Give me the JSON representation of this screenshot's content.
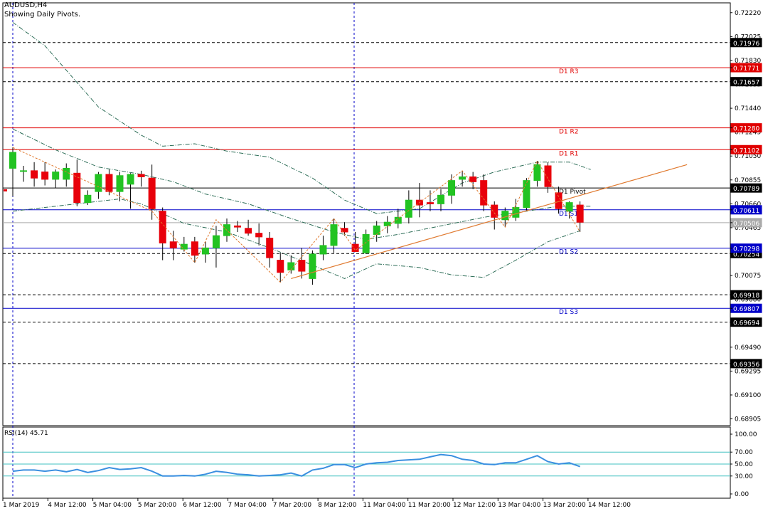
{
  "header": {
    "symbol": "AUDUSD,H4",
    "subtitle": "Showing Daily Pivots."
  },
  "colors": {
    "background": "#ffffff",
    "frame": "#000000",
    "bull": "#22c322",
    "bear": "#e8000b",
    "resistance": "#e00000",
    "support": "#0000c8",
    "pivot": "#000000",
    "trendline": "#e07a30",
    "zigzag": "#e07a30",
    "bands": "#2e6e58",
    "rsi": "#3a8fe0",
    "rsi_levels": "#40c0c0",
    "period_sep": "#0000c8",
    "tag_red": "#e00000",
    "tag_blue": "#0000c8",
    "tag_black": "#000000",
    "tag_gray": "#aaaaaa"
  },
  "chart_data": {
    "type": "candlestick",
    "ylim": [
      0.6885,
      0.723
    ],
    "price_ticks": [
      "0.72220",
      "0.72025",
      "0.71830",
      "0.71635",
      "0.71440",
      "0.71245",
      "0.71050",
      "0.70855",
      "0.70660",
      "0.70465",
      "0.70270",
      "0.70075",
      "0.69880",
      "0.69685",
      "0.69490",
      "0.69295",
      "0.69100",
      "0.68905"
    ],
    "x_labels": [
      "1 Mar 2019",
      "4 Mar 12:00",
      "5 Mar 04:00",
      "5 Mar 20:00",
      "6 Mar 12:00",
      "7 Mar 04:00",
      "7 Mar 20:00",
      "8 Mar 12:00",
      "11 Mar 04:00",
      "11 Mar 20:00",
      "12 Mar 12:00",
      "13 Mar 04:00",
      "13 Mar 20:00",
      "14 Mar 12:00"
    ],
    "candles": [
      {
        "o": 0.7095,
        "h": 0.7112,
        "l": 0.7072,
        "c": 0.7108
      },
      {
        "o": 0.7093,
        "h": 0.7097,
        "l": 0.7084,
        "c": 0.7093
      },
      {
        "o": 0.7093,
        "h": 0.71,
        "l": 0.708,
        "c": 0.7087
      },
      {
        "o": 0.7092,
        "h": 0.71,
        "l": 0.7081,
        "c": 0.7086
      },
      {
        "o": 0.7086,
        "h": 0.7094,
        "l": 0.7079,
        "c": 0.7092
      },
      {
        "o": 0.7086,
        "h": 0.7099,
        "l": 0.708,
        "c": 0.7095
      },
      {
        "o": 0.7091,
        "h": 0.7102,
        "l": 0.7064,
        "c": 0.7067
      },
      {
        "o": 0.7067,
        "h": 0.7077,
        "l": 0.7065,
        "c": 0.7073
      },
      {
        "o": 0.7076,
        "h": 0.7092,
        "l": 0.707,
        "c": 0.709
      },
      {
        "o": 0.709,
        "h": 0.7094,
        "l": 0.7073,
        "c": 0.7076
      },
      {
        "o": 0.7076,
        "h": 0.7092,
        "l": 0.7068,
        "c": 0.7089
      },
      {
        "o": 0.7082,
        "h": 0.7091,
        "l": 0.7062,
        "c": 0.709
      },
      {
        "o": 0.709,
        "h": 0.7093,
        "l": 0.708,
        "c": 0.7088
      },
      {
        "o": 0.7087,
        "h": 0.7098,
        "l": 0.7053,
        "c": 0.7062
      },
      {
        "o": 0.706,
        "h": 0.7063,
        "l": 0.702,
        "c": 0.7034
      },
      {
        "o": 0.7035,
        "h": 0.7044,
        "l": 0.702,
        "c": 0.703
      },
      {
        "o": 0.7029,
        "h": 0.7039,
        "l": 0.7027,
        "c": 0.7033
      },
      {
        "o": 0.7035,
        "h": 0.7039,
        "l": 0.7018,
        "c": 0.7024
      },
      {
        "o": 0.7025,
        "h": 0.7035,
        "l": 0.7018,
        "c": 0.703
      },
      {
        "o": 0.703,
        "h": 0.7048,
        "l": 0.7014,
        "c": 0.704
      },
      {
        "o": 0.704,
        "h": 0.7054,
        "l": 0.7035,
        "c": 0.7049
      },
      {
        "o": 0.7048,
        "h": 0.7052,
        "l": 0.7043,
        "c": 0.7047
      },
      {
        "o": 0.7046,
        "h": 0.7053,
        "l": 0.704,
        "c": 0.7042
      },
      {
        "o": 0.7042,
        "h": 0.705,
        "l": 0.7032,
        "c": 0.7039
      },
      {
        "o": 0.7038,
        "h": 0.7043,
        "l": 0.7014,
        "c": 0.7022
      },
      {
        "o": 0.702,
        "h": 0.7026,
        "l": 0.7002,
        "c": 0.701
      },
      {
        "o": 0.7012,
        "h": 0.7024,
        "l": 0.7009,
        "c": 0.7018
      },
      {
        "o": 0.702,
        "h": 0.703,
        "l": 0.7005,
        "c": 0.7011
      },
      {
        "o": 0.7005,
        "h": 0.7028,
        "l": 0.7,
        "c": 0.7025
      },
      {
        "o": 0.7025,
        "h": 0.704,
        "l": 0.702,
        "c": 0.7032
      },
      {
        "o": 0.7032,
        "h": 0.7054,
        "l": 0.7026,
        "c": 0.7049
      },
      {
        "o": 0.7046,
        "h": 0.7051,
        "l": 0.704,
        "c": 0.7043
      },
      {
        "o": 0.7033,
        "h": 0.7043,
        "l": 0.7027,
        "c": 0.7027
      },
      {
        "o": 0.7026,
        "h": 0.7045,
        "l": 0.7025,
        "c": 0.7041
      },
      {
        "o": 0.7041,
        "h": 0.7052,
        "l": 0.7035,
        "c": 0.7048
      },
      {
        "o": 0.7048,
        "h": 0.7056,
        "l": 0.7042,
        "c": 0.7051
      },
      {
        "o": 0.705,
        "h": 0.7062,
        "l": 0.7046,
        "c": 0.7055
      },
      {
        "o": 0.7055,
        "h": 0.7077,
        "l": 0.705,
        "c": 0.7069
      },
      {
        "o": 0.7069,
        "h": 0.7083,
        "l": 0.7055,
        "c": 0.7065
      },
      {
        "o": 0.7067,
        "h": 0.7077,
        "l": 0.706,
        "c": 0.7066
      },
      {
        "o": 0.7066,
        "h": 0.7078,
        "l": 0.706,
        "c": 0.7073
      },
      {
        "o": 0.7073,
        "h": 0.709,
        "l": 0.7066,
        "c": 0.7085
      },
      {
        "o": 0.7086,
        "h": 0.7093,
        "l": 0.708,
        "c": 0.7088
      },
      {
        "o": 0.7088,
        "h": 0.7092,
        "l": 0.7078,
        "c": 0.7084
      },
      {
        "o": 0.7085,
        "h": 0.709,
        "l": 0.706,
        "c": 0.7065
      },
      {
        "o": 0.7065,
        "h": 0.7068,
        "l": 0.7045,
        "c": 0.7055
      },
      {
        "o": 0.7053,
        "h": 0.7063,
        "l": 0.7047,
        "c": 0.706
      },
      {
        "o": 0.7055,
        "h": 0.707,
        "l": 0.7052,
        "c": 0.7063
      },
      {
        "o": 0.7063,
        "h": 0.7087,
        "l": 0.706,
        "c": 0.7085
      },
      {
        "o": 0.7085,
        "h": 0.7101,
        "l": 0.708,
        "c": 0.7098
      },
      {
        "o": 0.7097,
        "h": 0.71,
        "l": 0.7075,
        "c": 0.708
      },
      {
        "o": 0.7075,
        "h": 0.708,
        "l": 0.7058,
        "c": 0.7062
      },
      {
        "o": 0.706,
        "h": 0.7068,
        "l": 0.7054,
        "c": 0.7067
      },
      {
        "o": 0.7065,
        "h": 0.7068,
        "l": 0.7043,
        "c": 0.7051
      }
    ],
    "pivot_lines": [
      {
        "label": "D1 R3",
        "price": 0.71771,
        "tag": "0.71771",
        "color": "resistance"
      },
      {
        "label": "D1 R2",
        "price": 0.7128,
        "tag": "0.71280",
        "color": "resistance"
      },
      {
        "label": "D1 R1",
        "price": 0.71102,
        "tag": "0.71102",
        "color": "resistance"
      },
      {
        "label": "D1 Pivot",
        "price": 0.70789,
        "tag": "0.70789",
        "color": "pivot"
      },
      {
        "label": "D1 S1",
        "price": 0.70611,
        "tag": "0.70611",
        "color": "support"
      },
      {
        "label": "D1 S2",
        "price": 0.70298,
        "tag": "0.70298",
        "color": "support"
      },
      {
        "label": "D1 S3",
        "price": 0.69807,
        "tag": "0.69807",
        "color": "support"
      }
    ],
    "dashed_levels": [
      {
        "price": 0.71976,
        "tag": "0.71976"
      },
      {
        "price": 0.71657,
        "tag": "0.71657"
      },
      {
        "price": 0.70254,
        "tag": "0.70254"
      },
      {
        "price": 0.69918,
        "tag": "0.69918"
      },
      {
        "price": 0.69694,
        "tag": "0.69694"
      },
      {
        "price": 0.69356,
        "tag": "0.69356"
      }
    ],
    "current_price": {
      "price": 0.70506,
      "tag": "0.70506"
    },
    "trendline": [
      {
        "i": 26,
        "p": 0.7005
      },
      {
        "i": 63,
        "p": 0.7098
      }
    ],
    "zigzag": [
      [
        0,
        0.7112
      ],
      [
        13,
        0.706
      ],
      [
        17,
        0.7018
      ],
      [
        19,
        0.7053
      ],
      [
        25,
        0.7002
      ],
      [
        30,
        0.7054
      ],
      [
        32,
        0.7028
      ],
      [
        42,
        0.7093
      ],
      [
        46,
        0.7047
      ],
      [
        49,
        0.7101
      ],
      [
        53,
        0.7043
      ]
    ],
    "bands": {
      "upper": [
        [
          0,
          0.7214
        ],
        [
          3,
          0.7195
        ],
        [
          8,
          0.7145
        ],
        [
          12,
          0.7122
        ],
        [
          14,
          0.7113
        ],
        [
          17,
          0.7115
        ],
        [
          20,
          0.7109
        ],
        [
          24,
          0.7104
        ],
        [
          28,
          0.7087
        ],
        [
          31,
          0.7069
        ],
        [
          34,
          0.7058
        ],
        [
          38,
          0.7062
        ],
        [
          42,
          0.7083
        ],
        [
          45,
          0.7092
        ],
        [
          49,
          0.71
        ],
        [
          52,
          0.71
        ],
        [
          54,
          0.7094
        ]
      ],
      "middle": [
        [
          0,
          0.7127
        ],
        [
          4,
          0.711
        ],
        [
          8,
          0.7096
        ],
        [
          12,
          0.709
        ],
        [
          15,
          0.7084
        ],
        [
          18,
          0.7074
        ],
        [
          22,
          0.7066
        ],
        [
          26,
          0.7054
        ],
        [
          30,
          0.7043
        ],
        [
          33,
          0.7037
        ],
        [
          36,
          0.7041
        ],
        [
          40,
          0.7048
        ],
        [
          44,
          0.7055
        ],
        [
          48,
          0.706
        ],
        [
          51,
          0.7064
        ],
        [
          54,
          0.7064
        ]
      ],
      "lower": [
        [
          0,
          0.706
        ],
        [
          3,
          0.7063
        ],
        [
          7,
          0.7067
        ],
        [
          10,
          0.707
        ],
        [
          12,
          0.7066
        ],
        [
          16,
          0.705
        ],
        [
          20,
          0.7043
        ],
        [
          24,
          0.703
        ],
        [
          28,
          0.7016
        ],
        [
          31,
          0.7005
        ],
        [
          34,
          0.7017
        ],
        [
          38,
          0.7014
        ],
        [
          41,
          0.7008
        ],
        [
          44,
          0.7006
        ],
        [
          47,
          0.702
        ],
        [
          50,
          0.7035
        ],
        [
          53,
          0.7044
        ]
      ]
    },
    "rsi": {
      "label": "RSI(14) 45.71",
      "ticks": [
        "100.00",
        "70.00",
        "50.00",
        "30.00",
        "0.00"
      ],
      "levels": [
        70,
        50,
        30
      ],
      "values": [
        38,
        40,
        40,
        38,
        40,
        37,
        41,
        36,
        39,
        44,
        41,
        42,
        44,
        38,
        30,
        30,
        31,
        30,
        33,
        38,
        36,
        33,
        32,
        30,
        31,
        32,
        35,
        30,
        40,
        43,
        49,
        49,
        44,
        50,
        52,
        53,
        56,
        57,
        58,
        62,
        66,
        64,
        58,
        56,
        50,
        49,
        52,
        52,
        58,
        64,
        54,
        50,
        52,
        45.71
      ]
    }
  }
}
